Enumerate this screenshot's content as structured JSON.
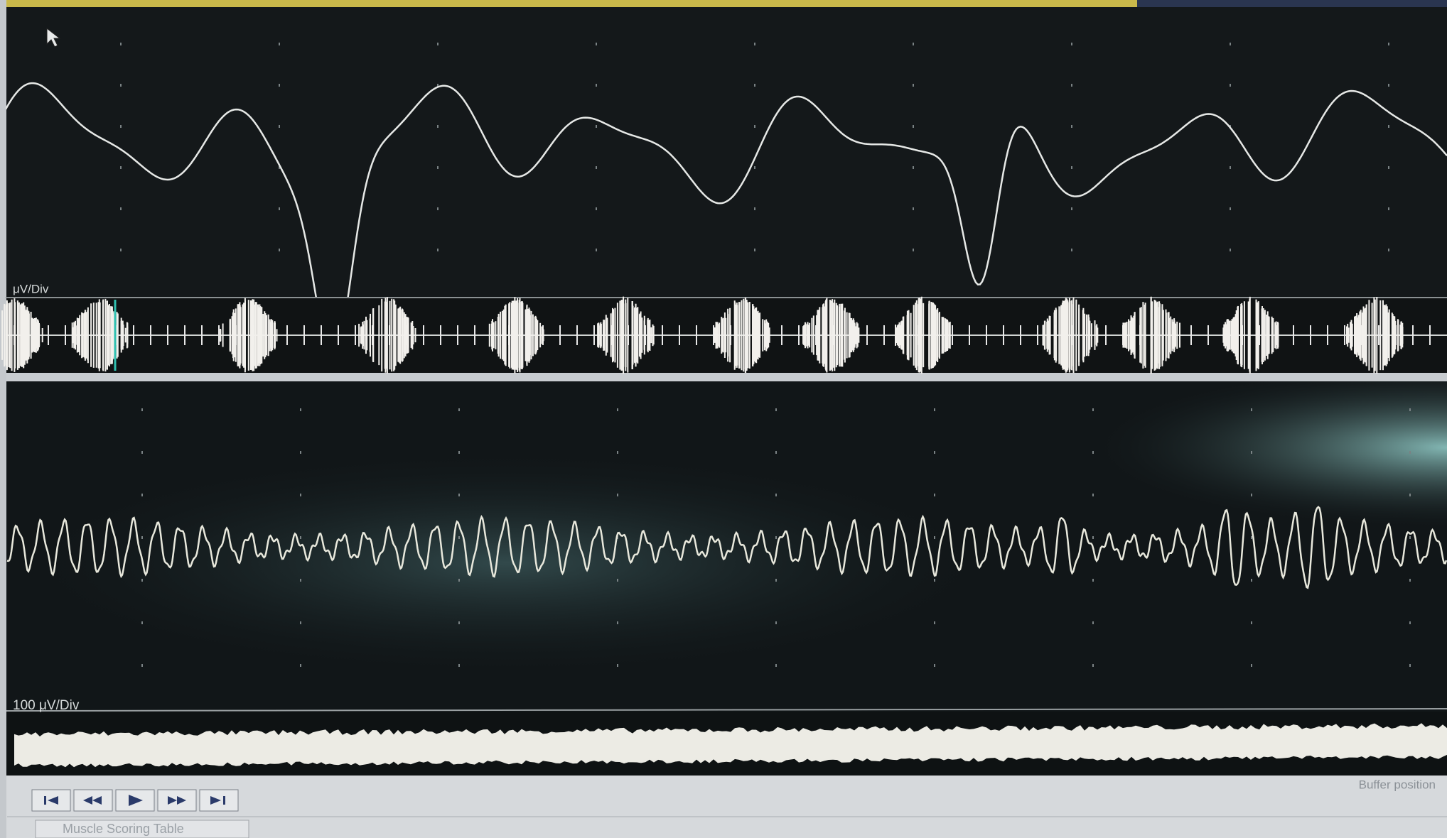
{
  "panels": [
    {
      "scale_label": "μV/Div"
    },
    {
      "scale_label": "100 μV/Div"
    }
  ],
  "toolbar": {
    "buffer_label": "Buffer position"
  },
  "tab": {
    "label": "Muscle Scoring Table"
  }
}
